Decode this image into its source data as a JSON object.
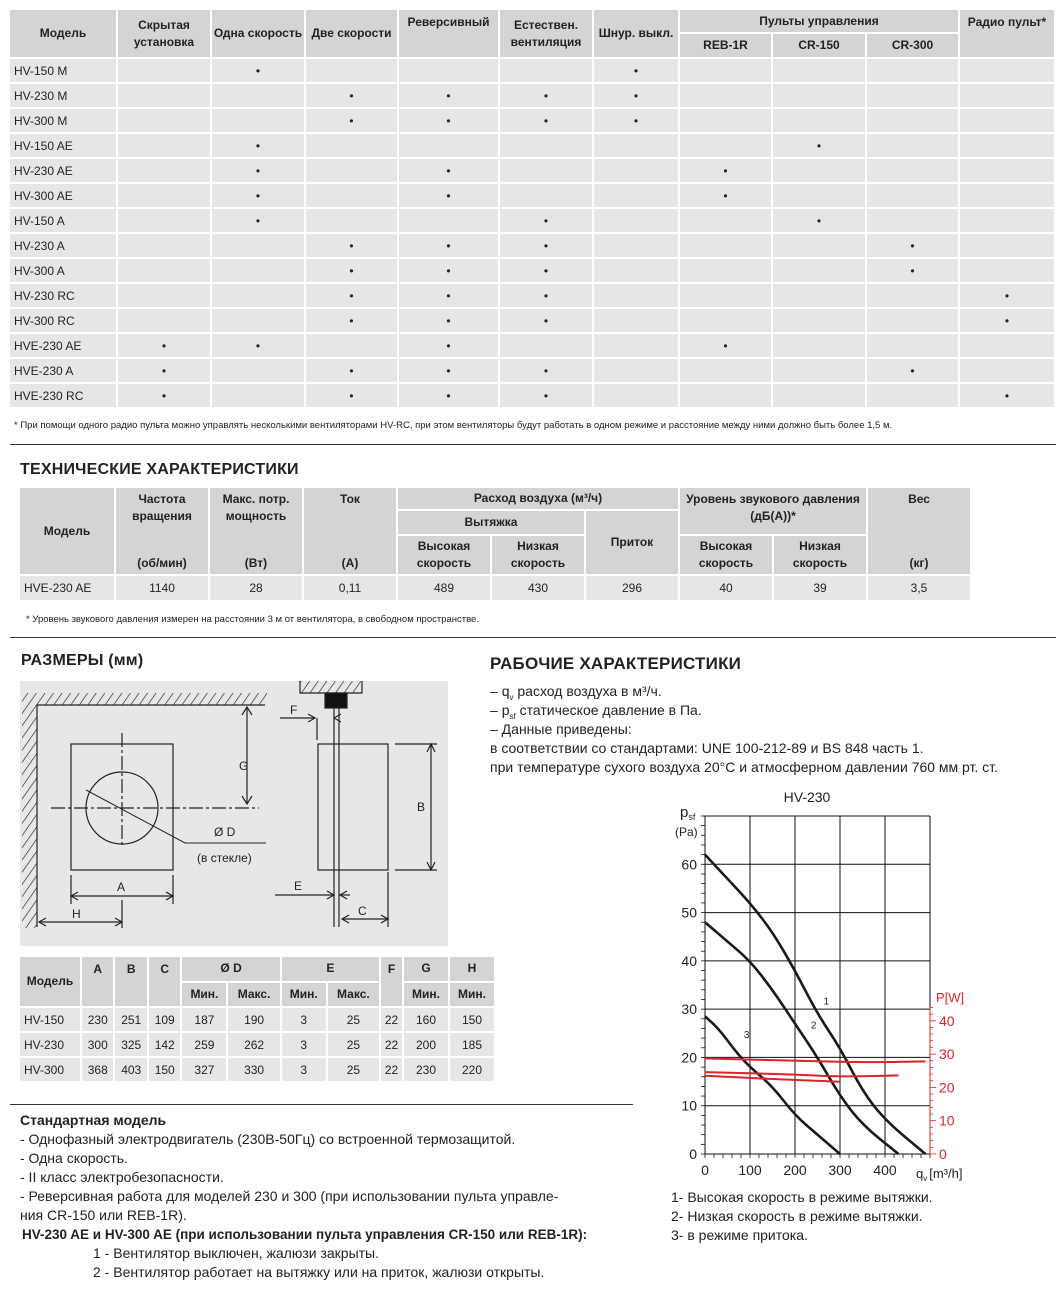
{
  "features_table": {
    "headers": {
      "model": "Модель",
      "hidden": "Скрытая установка",
      "one_speed": "Одна скорость",
      "two_speeds": "Две скорости",
      "reversible": "Реверсивный",
      "natural_vent": "Естествен. вентиляция",
      "cord_switch": "Шнур. выкл.",
      "controls": "Пульты управления",
      "reb1r": "REB-1R",
      "cr150": "CR-150",
      "cr300": "CR-300",
      "radio": "Радио пульт*"
    },
    "rows": [
      {
        "model": "HV-150 M",
        "cells": [
          "",
          "•",
          "",
          "",
          "",
          "•",
          "",
          "",
          "",
          ""
        ]
      },
      {
        "model": "HV-230 M",
        "cells": [
          "",
          "",
          "•",
          "•",
          "•",
          "•",
          "",
          "",
          "",
          ""
        ]
      },
      {
        "model": "HV-300 M",
        "cells": [
          "",
          "",
          "•",
          "•",
          "•",
          "•",
          "",
          "",
          "",
          ""
        ]
      },
      {
        "model": "HV-150 AE",
        "cells": [
          "",
          "•",
          "",
          "",
          "",
          "",
          "",
          "•",
          "",
          ""
        ]
      },
      {
        "model": "HV-230 AE",
        "cells": [
          "",
          "•",
          "",
          "•",
          "",
          "",
          "•",
          "",
          "",
          ""
        ]
      },
      {
        "model": "HV-300 AE",
        "cells": [
          "",
          "•",
          "",
          "•",
          "",
          "",
          "•",
          "",
          "",
          ""
        ]
      },
      {
        "model": "HV-150 A",
        "cells": [
          "",
          "•",
          "",
          "",
          "•",
          "",
          "",
          "•",
          "",
          ""
        ]
      },
      {
        "model": "HV-230 A",
        "cells": [
          "",
          "",
          "•",
          "•",
          "•",
          "",
          "",
          "",
          "•",
          ""
        ]
      },
      {
        "model": "HV-300 A",
        "cells": [
          "",
          "",
          "•",
          "•",
          "•",
          "",
          "",
          "",
          "•",
          ""
        ]
      },
      {
        "model": "HV-230 RC",
        "cells": [
          "",
          "",
          "•",
          "•",
          "•",
          "",
          "",
          "",
          "",
          "•"
        ]
      },
      {
        "model": "HV-300 RC",
        "cells": [
          "",
          "",
          "•",
          "•",
          "•",
          "",
          "",
          "",
          "",
          "•"
        ]
      },
      {
        "model": "HVE-230 AE",
        "cells": [
          "•",
          "•",
          "",
          "•",
          "",
          "",
          "•",
          "",
          "",
          ""
        ]
      },
      {
        "model": "HVE-230 A",
        "cells": [
          "•",
          "",
          "•",
          "•",
          "•",
          "",
          "",
          "",
          "•",
          ""
        ]
      },
      {
        "model": "HVE-230 RC",
        "cells": [
          "•",
          "",
          "•",
          "•",
          "•",
          "",
          "",
          "",
          "",
          "•"
        ]
      }
    ],
    "footnote": "* При помощи одного радио пульта можно управлять несколькими вентиляторами HV-RC, при этом вентиляторы будут работать в одном режиме и расстояние между ними должно быть более 1,5 м."
  },
  "tech": {
    "title": "ТЕХНИЧЕСКИЕ ХАРАКТЕРИСТИКИ",
    "headers": {
      "model": "Модель",
      "rpm": "Частота вращения",
      "rpm_unit": "(об/мин)",
      "power": "Макс. потр. мощность",
      "power_unit": "(Вт)",
      "current": "Ток",
      "current_unit": "(А)",
      "airflow": "Расход воздуха (м³/ч)",
      "exhaust": "Вытяжка",
      "supply": "Приток",
      "high": "Высокая скорость",
      "low": "Низкая скорость",
      "sound": "Уровень звукового давления (дБ(А))*",
      "weight": "Вес",
      "weight_unit": "(кг)"
    },
    "row": [
      "HVE-230 AE",
      "1140",
      "28",
      "0,11",
      "489",
      "430",
      "296",
      "40",
      "39",
      "3,5"
    ],
    "footnote": "* Уровень звукового давления измерен на расстоянии 3 м от вентилятора, в свободном пространстве."
  },
  "dimensions": {
    "title": "РАЗМЕРЫ (мм)",
    "diagram_labels": {
      "a": "A",
      "b": "B",
      "c": "C",
      "d": "Ø D",
      "d_note": "(в стекле)",
      "e": "E",
      "f": "F",
      "g": "G",
      "h": "H"
    },
    "headers": {
      "model": "Модель",
      "a": "A",
      "b": "B",
      "c": "C",
      "d": "Ø D",
      "e": "E",
      "f": "F",
      "g": "G",
      "h": "H",
      "min": "Мин.",
      "max": "Макс."
    },
    "rows": [
      [
        "HV-150",
        "230",
        "251",
        "109",
        "187",
        "190",
        "3",
        "25",
        "22",
        "160",
        "150"
      ],
      [
        "HV-230",
        "300",
        "325",
        "142",
        "259",
        "262",
        "3",
        "25",
        "22",
        "200",
        "185"
      ],
      [
        "HV-300",
        "368",
        "403",
        "150",
        "327",
        "330",
        "3",
        "25",
        "22",
        "230",
        "220"
      ]
    ]
  },
  "standard": {
    "title": "Стандартная модель",
    "items": [
      "- Однофазный электродвигатель (230В-50Гц) со встроенной термозащитой.",
      "- Одна скорость.",
      "- II класс электробезопасности.",
      "- Реверсивная работа для моделей 230 и 300 (при использовании пульта управле-",
      "ния CR-150 или REB-1R)."
    ],
    "ae_title": "HV-230 AE и HV-300 AE (при использовании пульта управления CR-150 или REB-1R):",
    "ae_items": [
      "1 - Вентилятор выключен, жалюзи закрыты.",
      "2 - Вентилятор работает на вытяжку или на приток, жалюзи открыты."
    ]
  },
  "performance": {
    "title": "РАБОЧИЕ ХАРАКТЕРИСТИКИ",
    "lines": {
      "qv_sym": "q",
      "qv_sub": "v",
      "qv_text": "расход воздуха в м³/ч.",
      "psf_sym": "p",
      "psf_sub": "sf",
      "psf_text": "статическое давление в Па.",
      "data": "– Данные приведены:",
      "standards": "в соответствии со стандартами: UNE 100-212-89 и BS 848 часть 1.",
      "conditions": "при температуре сухого воздуха 20°C и атмосферном давлении 760 мм рт. ст."
    },
    "legend": [
      "1- Высокая скорость в режиме вытяжки.",
      "2- Низкая скорость в режиме вытяжки.",
      "3- в режиме притока."
    ]
  },
  "chart_data": {
    "type": "line",
    "title": "HV-230",
    "ylabel": "psf (Pa)",
    "ylabel_sym": "p",
    "ylabel_sub": "sf",
    "ylabel_unit": "(Pa)",
    "xlabel_sym": "q",
    "xlabel_sub": "v",
    "xlabel_unit": "[m³/h]",
    "y2label": "P[W]",
    "xlim": [
      0,
      500
    ],
    "ylim": [
      0,
      70
    ],
    "y2lim": [
      0,
      40
    ],
    "xticks": [
      0,
      100,
      200,
      300,
      400
    ],
    "yticks": [
      0,
      10,
      20,
      30,
      40,
      50,
      60
    ],
    "y2ticks": [
      0,
      10,
      20,
      30,
      40
    ],
    "grid": true,
    "colors": {
      "pressure": "#1a1a1a",
      "power": "#d6262b"
    },
    "series": [
      {
        "name": "1",
        "axis": "left",
        "x": [
          0,
          50,
          100,
          150,
          200,
          250,
          300,
          350,
          400,
          490
        ],
        "y": [
          62,
          57,
          52,
          46,
          38,
          29,
          22,
          13,
          7,
          0
        ]
      },
      {
        "name": "2",
        "axis": "left",
        "x": [
          0,
          50,
          100,
          150,
          200,
          250,
          300,
          350,
          430
        ],
        "y": [
          48,
          44,
          40,
          34,
          27,
          20,
          12,
          6,
          0
        ]
      },
      {
        "name": "3",
        "axis": "left",
        "x": [
          0,
          30,
          70,
          100,
          150,
          200,
          250,
          300
        ],
        "y": [
          28.5,
          26,
          21,
          18,
          14,
          8,
          4,
          0
        ]
      },
      {
        "axis": "right",
        "x": [
          0,
          200,
          370,
          490
        ],
        "y": [
          28.7,
          28,
          27.5,
          27.8
        ]
      },
      {
        "axis": "right",
        "x": [
          0,
          200,
          300,
          430
        ],
        "y": [
          24.6,
          23.9,
          23.2,
          23.6
        ]
      },
      {
        "axis": "right",
        "x": [
          0,
          150,
          300
        ],
        "y": [
          23.5,
          22.5,
          21.7
        ]
      }
    ]
  }
}
